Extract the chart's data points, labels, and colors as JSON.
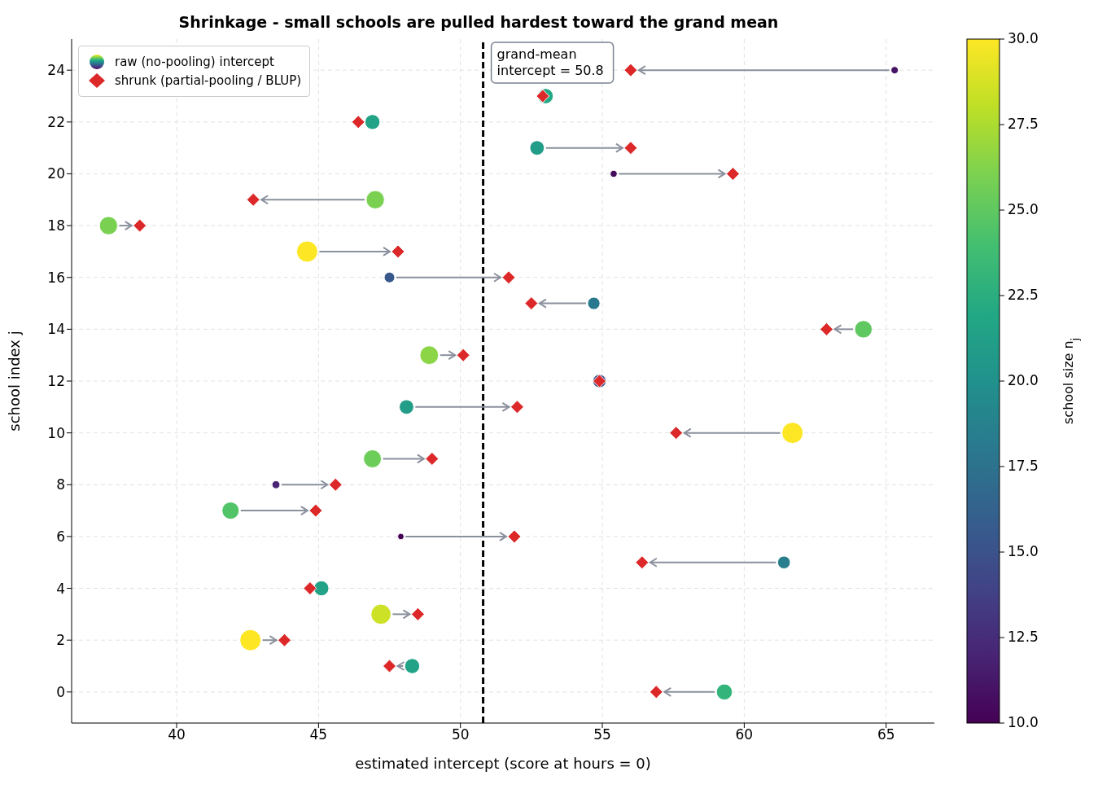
{
  "chart_data": {
    "type": "scatter",
    "title": "Shrinkage - small schools are pulled hardest toward the grand mean",
    "xlabel": "estimated intercept (score at hours = 0)",
    "ylabel": "school index j",
    "clabel": "school size n$_{j}$",
    "xlim": [
      36.3,
      66.7
    ],
    "xticks": [
      40,
      45,
      50,
      55,
      60,
      65
    ],
    "ylim": [
      -1.2,
      25.2
    ],
    "yticks": [
      0,
      2,
      4,
      6,
      8,
      10,
      12,
      14,
      16,
      18,
      20,
      22,
      24
    ],
    "clim": [
      10,
      30
    ],
    "cticks": [
      {
        "value": 10,
        "label": "10.0"
      },
      12.5,
      {
        "value": 15,
        "label": "15.0"
      },
      17.5,
      {
        "value": 20,
        "label": "20.0"
      },
      22.5,
      {
        "value": 25,
        "label": "25.0"
      },
      27.5,
      {
        "value": 30,
        "label": "30.0"
      }
    ],
    "grid": true,
    "legend": "top left",
    "series": [
      {
        "name": "raw (no-pooling) intercept",
        "marker": "circle",
        "sizes": [
          0.57,
          0.5,
          1,
          0.9,
          0.5,
          0.36,
          0.09,
          0.66,
          0.14,
          0.71,
          1,
          0.47,
          0.4,
          0.77,
          0.68,
          0.34,
          0.25,
          1,
          0.74,
          0.74,
          0.11,
          0.47,
          0.5,
          0.52,
          0.12
        ],
        "colors": [
          "#33b47a",
          "#22a286",
          "#fde725",
          "#cde126",
          "#22a286",
          "#287e8d",
          "#440154",
          "#52c468",
          "#482475",
          "#6dcd59",
          "#fde725",
          "#229d88",
          "#3b528a",
          "#8bd546",
          "#5fc861",
          "#2a788e",
          "#38588c",
          "#fde725",
          "#7ad151",
          "#7ad151",
          "#450a5c",
          "#229d88",
          "#22a286",
          "#22a884",
          "#461365"
        ],
        "x": [
          59.3,
          48.3,
          42.6,
          47.2,
          45.1,
          61.4,
          47.9,
          41.9,
          43.5,
          46.9,
          61.7,
          48.1,
          54.9,
          48.9,
          64.2,
          54.7,
          47.5,
          44.6,
          37.6,
          47.0,
          55.4,
          52.7,
          46.9,
          53.0,
          65.3
        ],
        "values": [
          0,
          1,
          2,
          3,
          4,
          5,
          6,
          7,
          8,
          9,
          10,
          11,
          12,
          13,
          14,
          15,
          16,
          17,
          18,
          19,
          20,
          21,
          22,
          23,
          24
        ]
      },
      {
        "name": "shrunk (partial-pooling / BLUP)",
        "marker": "diamond",
        "color": "#dc2828",
        "x": [
          56.9,
          47.5,
          43.8,
          48.5,
          44.7,
          56.4,
          51.9,
          44.9,
          45.6,
          49.0,
          57.6,
          52.0,
          54.9,
          50.1,
          62.9,
          52.5,
          51.7,
          47.8,
          38.7,
          42.7,
          59.6,
          56.0,
          46.4,
          52.9,
          56.0
        ],
        "values": [
          0,
          1,
          2,
          3,
          4,
          5,
          6,
          7,
          8,
          9,
          10,
          11,
          12,
          13,
          14,
          15,
          16,
          17,
          18,
          19,
          20,
          21,
          22,
          23,
          24
        ]
      }
    ],
    "ref_lines": [
      {
        "axis": "x",
        "value": 50.8,
        "label": "grand-mean\nintercept = 50.8",
        "color": "#000000",
        "line_style": "dashed"
      }
    ]
  }
}
